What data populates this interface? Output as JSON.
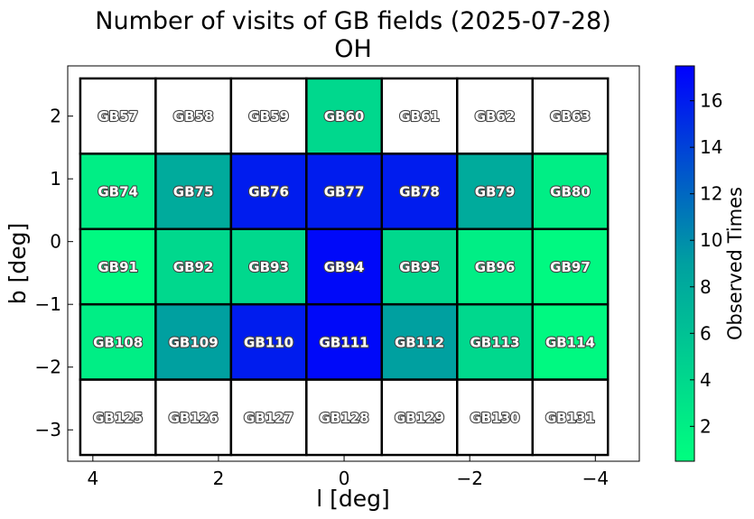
{
  "chart_data": {
    "type": "heatmap",
    "title": "Number of visits of GB fields (2025-07-28)",
    "subtitle": "OH",
    "xlabel": "l [deg]",
    "ylabel": "b [deg]",
    "xlim": [
      4.4,
      -4.7
    ],
    "ylim": [
      -3.5,
      2.8
    ],
    "x_ticks": [
      4,
      2,
      0,
      -2,
      -4
    ],
    "x_tick_labels": [
      "4",
      "2",
      "0",
      "−2",
      "−4"
    ],
    "y_ticks": [
      2,
      1,
      0,
      -1,
      -2,
      -3
    ],
    "y_tick_labels": [
      "2",
      "1",
      "0",
      "−1",
      "−2",
      "−3"
    ],
    "grid": false,
    "colorbar": {
      "label": "Observed Times",
      "vmin": 0.5,
      "vmax": 17.5,
      "ticks": [
        2,
        4,
        6,
        8,
        10,
        12,
        14,
        16
      ],
      "tick_labels": [
        "2",
        "4",
        "6",
        "8",
        "10",
        "12",
        "14",
        "16"
      ],
      "color_low": "#00ff7f",
      "color_mid": "#00a0a0",
      "color_high": "#0000ff"
    },
    "cell_l_width": 1.2,
    "cell_b_height": 1.2,
    "rows": [
      {
        "b_center": 2.0,
        "fields": [
          {
            "name": "GB57",
            "l": 3.6,
            "visits": 0
          },
          {
            "name": "GB58",
            "l": 2.4,
            "visits": 0
          },
          {
            "name": "GB59",
            "l": 1.2,
            "visits": 0
          },
          {
            "name": "GB60",
            "l": 0.0,
            "visits": 4
          },
          {
            "name": "GB61",
            "l": -1.2,
            "visits": 0
          },
          {
            "name": "GB62",
            "l": -2.4,
            "visits": 0
          },
          {
            "name": "GB63",
            "l": -3.6,
            "visits": 0
          }
        ]
      },
      {
        "b_center": 0.8,
        "fields": [
          {
            "name": "GB74",
            "l": 3.6,
            "visits": 2
          },
          {
            "name": "GB75",
            "l": 2.4,
            "visits": 8
          },
          {
            "name": "GB76",
            "l": 1.2,
            "visits": 16
          },
          {
            "name": "GB77",
            "l": 0.0,
            "visits": 16
          },
          {
            "name": "GB78",
            "l": -1.2,
            "visits": 16
          },
          {
            "name": "GB79",
            "l": -2.4,
            "visits": 8
          },
          {
            "name": "GB80",
            "l": -3.6,
            "visits": 2
          }
        ]
      },
      {
        "b_center": -0.4,
        "fields": [
          {
            "name": "GB91",
            "l": 3.6,
            "visits": 1
          },
          {
            "name": "GB92",
            "l": 2.4,
            "visits": 4
          },
          {
            "name": "GB93",
            "l": 1.2,
            "visits": 4
          },
          {
            "name": "GB94",
            "l": 0.0,
            "visits": 17
          },
          {
            "name": "GB95",
            "l": -1.2,
            "visits": 4
          },
          {
            "name": "GB96",
            "l": -2.4,
            "visits": 2
          },
          {
            "name": "GB97",
            "l": -3.6,
            "visits": 1
          }
        ]
      },
      {
        "b_center": -1.6,
        "fields": [
          {
            "name": "GB108",
            "l": 3.6,
            "visits": 2
          },
          {
            "name": "GB109",
            "l": 2.4,
            "visits": 9
          },
          {
            "name": "GB110",
            "l": 1.2,
            "visits": 16
          },
          {
            "name": "GB111",
            "l": 0.0,
            "visits": 17
          },
          {
            "name": "GB112",
            "l": -1.2,
            "visits": 9
          },
          {
            "name": "GB113",
            "l": -2.4,
            "visits": 4
          },
          {
            "name": "GB114",
            "l": -3.6,
            "visits": 1
          }
        ]
      },
      {
        "b_center": -2.8,
        "fields": [
          {
            "name": "GB125",
            "l": 3.6,
            "visits": 0
          },
          {
            "name": "GB126",
            "l": 2.4,
            "visits": 0
          },
          {
            "name": "GB127",
            "l": 1.2,
            "visits": 0
          },
          {
            "name": "GB128",
            "l": 0.0,
            "visits": 0
          },
          {
            "name": "GB129",
            "l": -1.2,
            "visits": 0
          },
          {
            "name": "GB130",
            "l": -2.4,
            "visits": 0
          },
          {
            "name": "GB131",
            "l": -3.6,
            "visits": 0
          }
        ]
      }
    ]
  }
}
